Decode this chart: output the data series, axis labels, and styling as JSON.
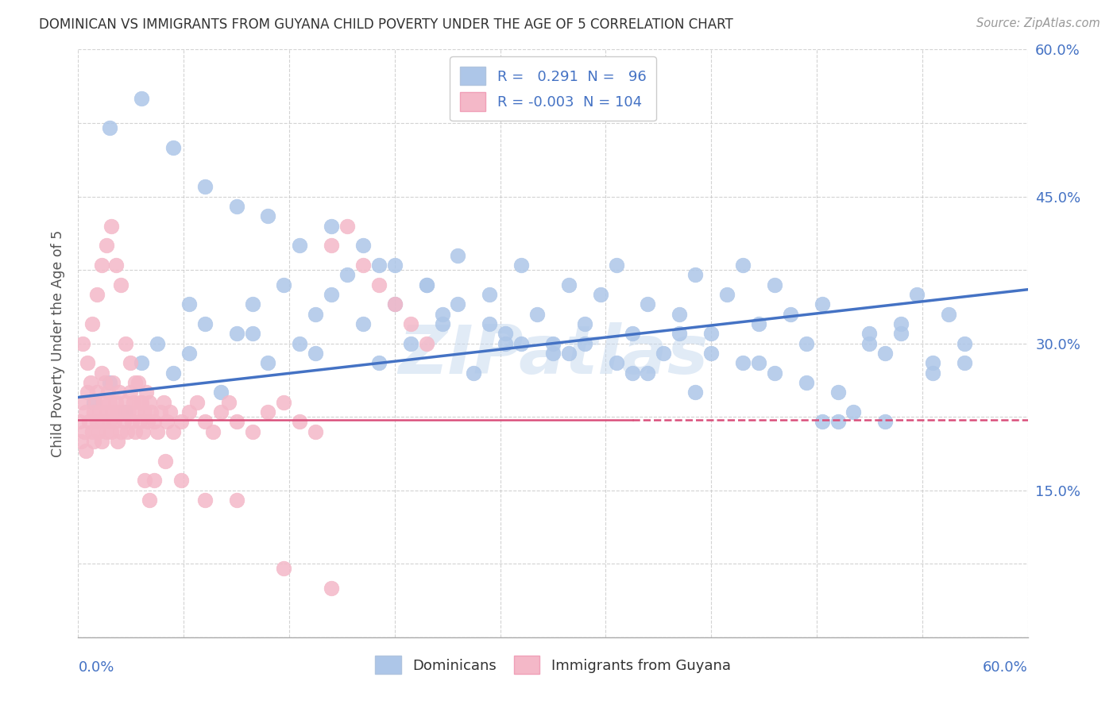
{
  "title": "DOMINICAN VS IMMIGRANTS FROM GUYANA CHILD POVERTY UNDER THE AGE OF 5 CORRELATION CHART",
  "source": "Source: ZipAtlas.com",
  "watermark": "ZIPatlas",
  "bottom_legend_blue": "Dominicans",
  "bottom_legend_pink": "Immigrants from Guyana",
  "blue_color": "#adc6e8",
  "blue_line_color": "#4472c4",
  "pink_color": "#f4b8c8",
  "pink_line_color": "#d94f7a",
  "background_color": "#ffffff",
  "grid_color": "#c8c8c8",
  "xlim": [
    0.0,
    0.6
  ],
  "ylim": [
    0.0,
    0.6
  ],
  "blue_line_start_y": 0.245,
  "blue_line_end_y": 0.355,
  "pink_line_y": 0.222,
  "blue_N": 96,
  "pink_N": 104,
  "blue_R": 0.291,
  "pink_R": -0.003,
  "blue_x": [
    0.01,
    0.02,
    0.03,
    0.04,
    0.05,
    0.06,
    0.07,
    0.08,
    0.09,
    0.1,
    0.11,
    0.12,
    0.13,
    0.14,
    0.15,
    0.16,
    0.17,
    0.18,
    0.19,
    0.2,
    0.21,
    0.22,
    0.23,
    0.24,
    0.25,
    0.26,
    0.27,
    0.28,
    0.29,
    0.3,
    0.31,
    0.32,
    0.33,
    0.34,
    0.35,
    0.36,
    0.37,
    0.38,
    0.39,
    0.4,
    0.41,
    0.42,
    0.43,
    0.44,
    0.45,
    0.46,
    0.47,
    0.48,
    0.49,
    0.5,
    0.51,
    0.52,
    0.53,
    0.54,
    0.55,
    0.56,
    0.02,
    0.04,
    0.06,
    0.08,
    0.1,
    0.12,
    0.14,
    0.16,
    0.18,
    0.2,
    0.22,
    0.24,
    0.26,
    0.28,
    0.3,
    0.32,
    0.34,
    0.36,
    0.38,
    0.4,
    0.42,
    0.44,
    0.46,
    0.48,
    0.5,
    0.52,
    0.54,
    0.56,
    0.07,
    0.11,
    0.15,
    0.19,
    0.23,
    0.27,
    0.31,
    0.35,
    0.39,
    0.43,
    0.47,
    0.51
  ],
  "blue_y": [
    0.24,
    0.26,
    0.23,
    0.28,
    0.3,
    0.27,
    0.29,
    0.32,
    0.25,
    0.31,
    0.34,
    0.28,
    0.36,
    0.3,
    0.33,
    0.35,
    0.37,
    0.32,
    0.38,
    0.34,
    0.3,
    0.36,
    0.33,
    0.39,
    0.27,
    0.35,
    0.31,
    0.38,
    0.33,
    0.3,
    0.36,
    0.32,
    0.35,
    0.38,
    0.31,
    0.34,
    0.29,
    0.33,
    0.37,
    0.31,
    0.35,
    0.38,
    0.32,
    0.36,
    0.33,
    0.3,
    0.34,
    0.22,
    0.23,
    0.31,
    0.29,
    0.32,
    0.35,
    0.28,
    0.33,
    0.3,
    0.52,
    0.55,
    0.5,
    0.46,
    0.44,
    0.43,
    0.4,
    0.42,
    0.4,
    0.38,
    0.36,
    0.34,
    0.32,
    0.3,
    0.29,
    0.3,
    0.28,
    0.27,
    0.31,
    0.29,
    0.28,
    0.27,
    0.26,
    0.25,
    0.3,
    0.31,
    0.27,
    0.28,
    0.34,
    0.31,
    0.29,
    0.28,
    0.32,
    0.3,
    0.29,
    0.27,
    0.25,
    0.28,
    0.22,
    0.22
  ],
  "pink_x": [
    0.001,
    0.002,
    0.003,
    0.004,
    0.005,
    0.005,
    0.006,
    0.007,
    0.008,
    0.009,
    0.01,
    0.01,
    0.011,
    0.012,
    0.012,
    0.013,
    0.014,
    0.015,
    0.015,
    0.016,
    0.016,
    0.017,
    0.018,
    0.018,
    0.019,
    0.02,
    0.02,
    0.021,
    0.022,
    0.022,
    0.023,
    0.024,
    0.025,
    0.025,
    0.026,
    0.027,
    0.028,
    0.029,
    0.03,
    0.031,
    0.032,
    0.033,
    0.034,
    0.035,
    0.036,
    0.037,
    0.038,
    0.039,
    0.04,
    0.041,
    0.042,
    0.043,
    0.044,
    0.045,
    0.046,
    0.048,
    0.05,
    0.052,
    0.054,
    0.056,
    0.058,
    0.06,
    0.065,
    0.07,
    0.075,
    0.08,
    0.085,
    0.09,
    0.095,
    0.1,
    0.11,
    0.12,
    0.13,
    0.14,
    0.15,
    0.16,
    0.17,
    0.18,
    0.19,
    0.2,
    0.21,
    0.22,
    0.003,
    0.006,
    0.009,
    0.012,
    0.015,
    0.018,
    0.021,
    0.024,
    0.027,
    0.03,
    0.033,
    0.036,
    0.039,
    0.042,
    0.045,
    0.048,
    0.055,
    0.065,
    0.08,
    0.1,
    0.13,
    0.16
  ],
  "pink_y": [
    0.22,
    0.2,
    0.24,
    0.21,
    0.23,
    0.19,
    0.25,
    0.22,
    0.26,
    0.21,
    0.23,
    0.2,
    0.24,
    0.22,
    0.25,
    0.21,
    0.23,
    0.27,
    0.2,
    0.24,
    0.22,
    0.26,
    0.23,
    0.21,
    0.25,
    0.22,
    0.24,
    0.21,
    0.23,
    0.26,
    0.22,
    0.24,
    0.2,
    0.23,
    0.25,
    0.21,
    0.23,
    0.22,
    0.24,
    0.21,
    0.23,
    0.25,
    0.22,
    0.24,
    0.21,
    0.23,
    0.26,
    0.22,
    0.24,
    0.21,
    0.23,
    0.25,
    0.22,
    0.24,
    0.23,
    0.22,
    0.21,
    0.23,
    0.24,
    0.22,
    0.23,
    0.21,
    0.22,
    0.23,
    0.24,
    0.22,
    0.21,
    0.23,
    0.24,
    0.22,
    0.21,
    0.23,
    0.24,
    0.22,
    0.21,
    0.4,
    0.42,
    0.38,
    0.36,
    0.34,
    0.32,
    0.3,
    0.3,
    0.28,
    0.32,
    0.35,
    0.38,
    0.4,
    0.42,
    0.38,
    0.36,
    0.3,
    0.28,
    0.26,
    0.24,
    0.16,
    0.14,
    0.16,
    0.18,
    0.16,
    0.14,
    0.14,
    0.07,
    0.05
  ]
}
